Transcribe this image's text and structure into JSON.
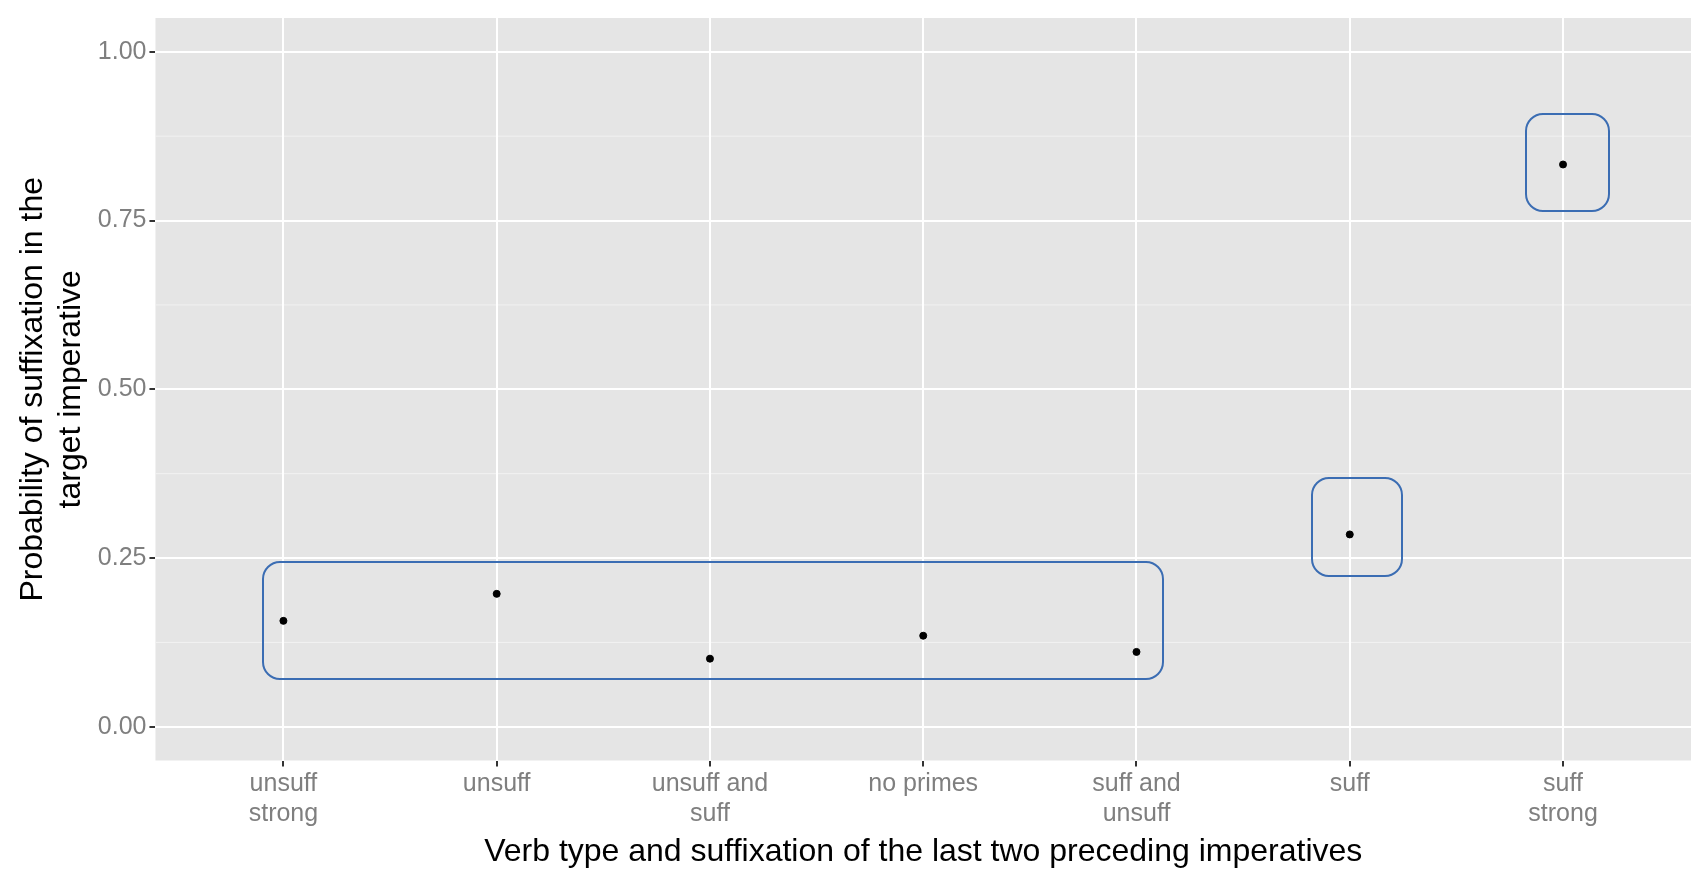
{
  "chart_data": {
    "type": "scatter",
    "xlabel": "Verb type and suffixation of the last two preceding imperatives",
    "ylabel": "Probability of suffixation in the target imperative",
    "categories": [
      "unsuff strong",
      "unsuff",
      "unsuff and suff",
      "no primes",
      "suff and unsuff",
      "suff",
      "suff strong"
    ],
    "series": [
      {
        "color": "#000000",
        "values": [
          0.157,
          0.197,
          0.101,
          0.135,
          0.111,
          0.285,
          0.833
        ]
      }
    ],
    "ylim": [
      -0.05,
      1.05
    ],
    "yticks": [
      {
        "value": 0,
        "label": "0.00"
      },
      {
        "value": 0.25,
        "label": "0.25"
      },
      {
        "value": 0.5,
        "label": "0.50"
      },
      {
        "value": 0.75,
        "label": "0.75"
      },
      {
        "value": 1,
        "label": "1.00"
      }
    ],
    "grid": true,
    "legend": false,
    "marker": "circle"
  }
}
